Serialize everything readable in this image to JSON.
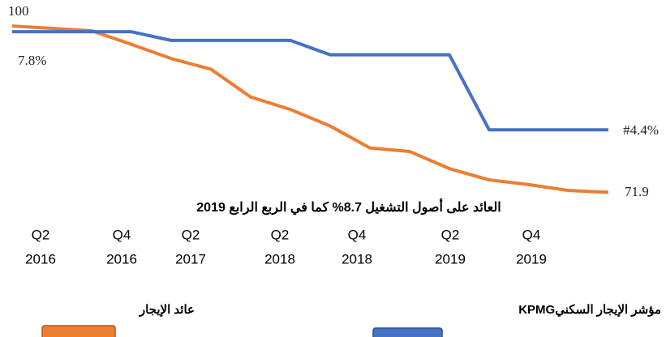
{
  "chart_data": {
    "type": "line",
    "title": "العائد على أصول التشغيل 8.7% كما في الربع الرابع 2019",
    "categories": [
      null,
      null,
      null,
      null,
      null,
      null,
      null,
      null,
      null,
      null,
      null,
      null,
      null,
      null,
      null,
      null
    ],
    "x_labels": [
      {
        "quarter": "Q2",
        "year": "2016"
      },
      {
        "quarter": "Q4",
        "year": "2016"
      },
      {
        "quarter": "Q2",
        "year": "2017"
      },
      {
        "quarter": "Q2",
        "year": "2018"
      },
      {
        "quarter": "Q4",
        "year": "2018"
      },
      {
        "quarter": "Q2",
        "year": "2019"
      },
      {
        "quarter": "Q4",
        "year": "2019"
      }
    ],
    "series": [
      {
        "name": "عائد الإيجار",
        "color": "#ed7d31",
        "values": [
          100,
          99.6,
          99.2,
          96.9,
          94.5,
          92.7,
          88.0,
          85.9,
          83.1,
          79.4,
          78.8,
          75.9,
          74.0,
          73.2,
          72.2,
          71.9
        ],
        "value_labels": [
          "100",
          null,
          null,
          null,
          null,
          null,
          null,
          null,
          null,
          null,
          null,
          null,
          null,
          null,
          null,
          "71.9"
        ]
      },
      {
        "name": "مؤشر الإيجار السكنيKPMG",
        "color": "#4472c4",
        "axis": "y2",
        "values": [
          7.8,
          7.8,
          7.8,
          7.8,
          7.5,
          7.5,
          7.5,
          7.5,
          7.0,
          7.0,
          7.0,
          7.0,
          4.4,
          4.4,
          4.4,
          4.4
        ],
        "value_labels": [
          "7.8%",
          null,
          null,
          null,
          null,
          null,
          null,
          null,
          null,
          null,
          null,
          null,
          "#4.4%",
          null,
          null,
          null
        ]
      }
    ],
    "ylim": [
      68.8,
      104.4
    ],
    "y2lim": [
      1.6,
      8.9
    ]
  }
}
